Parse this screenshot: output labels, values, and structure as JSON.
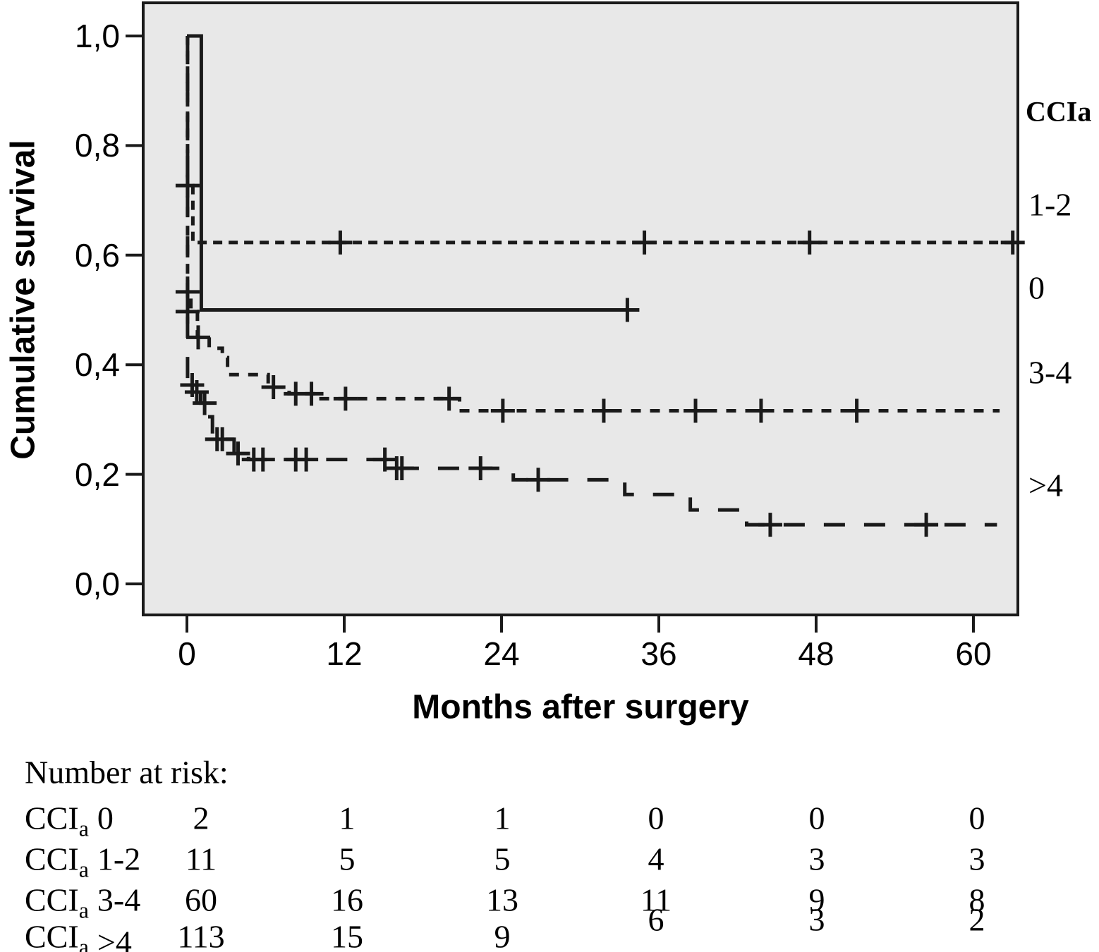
{
  "colors": {
    "line": "#1a1a1a",
    "plot_background": "#e8e8e8",
    "page_background": "#ffffff",
    "text": "#000000"
  },
  "chart_data": {
    "type": "line",
    "subtype": "kaplan-meier-survival",
    "title": "",
    "xlabel": "Months after surgery",
    "ylabel": "Cumulative survival",
    "xlim": [
      -3.3,
      63.4
    ],
    "ylim": [
      -0.06,
      1.06
    ],
    "grid": false,
    "x_ticks": [
      0,
      12,
      24,
      36,
      48,
      60
    ],
    "y_ticks": [
      {
        "v": 0.0,
        "label": "0,0"
      },
      {
        "v": 0.2,
        "label": "0,2"
      },
      {
        "v": 0.4,
        "label": "0,4"
      },
      {
        "v": 0.6,
        "label": "0,6"
      },
      {
        "v": 0.8,
        "label": "0,8"
      },
      {
        "v": 1.0,
        "label": "1,0"
      }
    ],
    "legend": {
      "title": "CCIa",
      "position": "right-outside",
      "entries": [
        "1-2",
        "0",
        "3-4",
        ">4"
      ]
    },
    "series": [
      {
        "name": "1-2",
        "line_style": "dashed-short",
        "dash": [
          13,
          9
        ],
        "steps": [
          [
            0,
            1.0
          ],
          [
            0.05,
            1.0
          ],
          [
            0.05,
            0.727
          ],
          [
            0.45,
            0.727
          ],
          [
            0.45,
            0.623
          ],
          [
            63.4,
            0.623
          ]
        ],
        "censors": [
          [
            0.05,
            0.727
          ],
          [
            11.7,
            0.623
          ],
          [
            34.9,
            0.623
          ],
          [
            47.5,
            0.623
          ],
          [
            63.0,
            0.623
          ]
        ]
      },
      {
        "name": "0",
        "line_style": "solid",
        "dash": null,
        "steps": [
          [
            0,
            1.0
          ],
          [
            1.1,
            1.0
          ],
          [
            1.1,
            0.5
          ],
          [
            34.2,
            0.5
          ]
        ],
        "censors": [
          [
            33.6,
            0.5
          ]
        ]
      },
      {
        "name": "3-4",
        "line_style": "dashed-medium",
        "dash": [
          14,
          13
        ],
        "steps": [
          [
            0,
            1.0
          ],
          [
            0.05,
            1.0
          ],
          [
            0.05,
            0.533
          ],
          [
            0.3,
            0.533
          ],
          [
            0.3,
            0.497
          ],
          [
            0.8,
            0.497
          ],
          [
            0.8,
            0.45
          ],
          [
            1.7,
            0.45
          ],
          [
            1.7,
            0.43
          ],
          [
            2.7,
            0.43
          ],
          [
            2.7,
            0.413
          ],
          [
            3.1,
            0.413
          ],
          [
            3.1,
            0.382
          ],
          [
            6.2,
            0.382
          ],
          [
            6.2,
            0.359
          ],
          [
            7.8,
            0.359
          ],
          [
            7.8,
            0.347
          ],
          [
            9.8,
            0.347
          ],
          [
            9.8,
            0.338
          ],
          [
            20.8,
            0.338
          ],
          [
            20.8,
            0.316
          ],
          [
            62.0,
            0.316
          ]
        ],
        "censors": [
          [
            0.05,
            0.533
          ],
          [
            0.05,
            0.497
          ],
          [
            0.86,
            0.45
          ],
          [
            6.6,
            0.359
          ],
          [
            8.3,
            0.347
          ],
          [
            9.5,
            0.347
          ],
          [
            12.1,
            0.338
          ],
          [
            20.0,
            0.338
          ],
          [
            24.1,
            0.316
          ],
          [
            31.8,
            0.316
          ],
          [
            38.8,
            0.316
          ],
          [
            43.8,
            0.316
          ],
          [
            51.1,
            0.316
          ]
        ]
      },
      {
        "name": ">4",
        "line_style": "dashed-long",
        "dash": [
          30,
          27
        ],
        "steps": [
          [
            0,
            1.0
          ],
          [
            0.05,
            1.0
          ],
          [
            0.05,
            0.363
          ],
          [
            0.55,
            0.363
          ],
          [
            0.55,
            0.35
          ],
          [
            1.05,
            0.35
          ],
          [
            1.05,
            0.33
          ],
          [
            1.55,
            0.33
          ],
          [
            1.55,
            0.305
          ],
          [
            1.95,
            0.305
          ],
          [
            1.95,
            0.264
          ],
          [
            3.6,
            0.264
          ],
          [
            3.6,
            0.238
          ],
          [
            4.7,
            0.238
          ],
          [
            4.7,
            0.227
          ],
          [
            15.4,
            0.227
          ],
          [
            15.4,
            0.211
          ],
          [
            24.9,
            0.211
          ],
          [
            24.9,
            0.19
          ],
          [
            33.4,
            0.19
          ],
          [
            33.4,
            0.163
          ],
          [
            38.4,
            0.163
          ],
          [
            38.4,
            0.135
          ],
          [
            42.7,
            0.135
          ],
          [
            42.7,
            0.108
          ],
          [
            61.8,
            0.108
          ]
        ],
        "censors": [
          [
            0.4,
            0.363
          ],
          [
            0.75,
            0.35
          ],
          [
            1.35,
            0.33
          ],
          [
            2.3,
            0.264
          ],
          [
            2.7,
            0.264
          ],
          [
            3.9,
            0.238
          ],
          [
            5.1,
            0.227
          ],
          [
            5.8,
            0.227
          ],
          [
            8.3,
            0.227
          ],
          [
            9.1,
            0.227
          ],
          [
            15.1,
            0.227
          ],
          [
            16.0,
            0.211
          ],
          [
            16.4,
            0.211
          ],
          [
            22.4,
            0.211
          ],
          [
            26.8,
            0.19
          ],
          [
            44.5,
            0.108
          ],
          [
            56.4,
            0.108
          ]
        ]
      }
    ],
    "number_at_risk": {
      "header": "Number at risk:",
      "row_label_prefix": "CCI",
      "row_label_subscript": "a",
      "time_points": [
        0,
        12,
        24,
        36,
        48,
        60
      ],
      "rows": [
        {
          "group": "0",
          "values": [
            "2",
            "1",
            "1",
            "0",
            "0",
            "0"
          ]
        },
        {
          "group": "1-2",
          "values": [
            "11",
            "5",
            "5",
            "4",
            "3",
            "3"
          ]
        },
        {
          "group": "3-4",
          "values": [
            "60",
            "16",
            "13",
            "11",
            "9",
            "8"
          ]
        },
        {
          "group": ">4",
          "values": [
            "113",
            "15",
            "9",
            "6",
            "3",
            "2"
          ]
        }
      ]
    }
  }
}
